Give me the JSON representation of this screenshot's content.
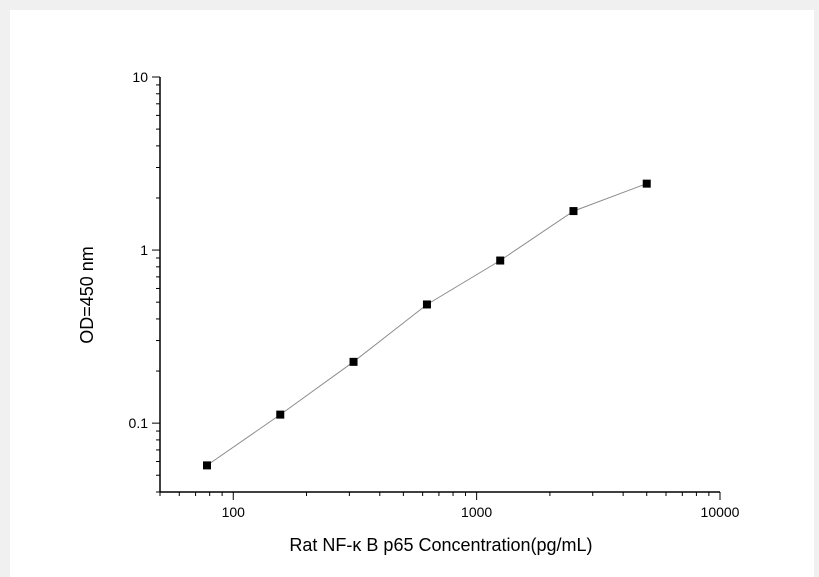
{
  "chart_data": {
    "type": "scatter",
    "title": "",
    "xlabel": "Rat  NF-κ B p65 Concentration(pg/mL)",
    "ylabel": "OD=450 nm",
    "xscale": "log",
    "yscale": "log",
    "xlim": [
      50,
      10000
    ],
    "ylim": [
      0.04,
      10
    ],
    "x_ticks": [
      100,
      1000,
      10000
    ],
    "x_tick_labels": [
      "100",
      "1000",
      "10000"
    ],
    "y_ticks": [
      0.1,
      1,
      10
    ],
    "y_tick_labels": [
      "0.1",
      "1",
      "10"
    ],
    "grid": false,
    "legend": "none",
    "marker": "square",
    "connect_points": true,
    "colors": {
      "marker": "#000000",
      "line": "#8c8c8c",
      "axis": "#000000"
    },
    "series": [
      {
        "x": [
          78,
          156,
          312,
          625,
          1250,
          2500,
          5000
        ],
        "y": [
          0.057,
          0.112,
          0.226,
          0.485,
          0.87,
          1.68,
          2.42
        ]
      }
    ]
  }
}
